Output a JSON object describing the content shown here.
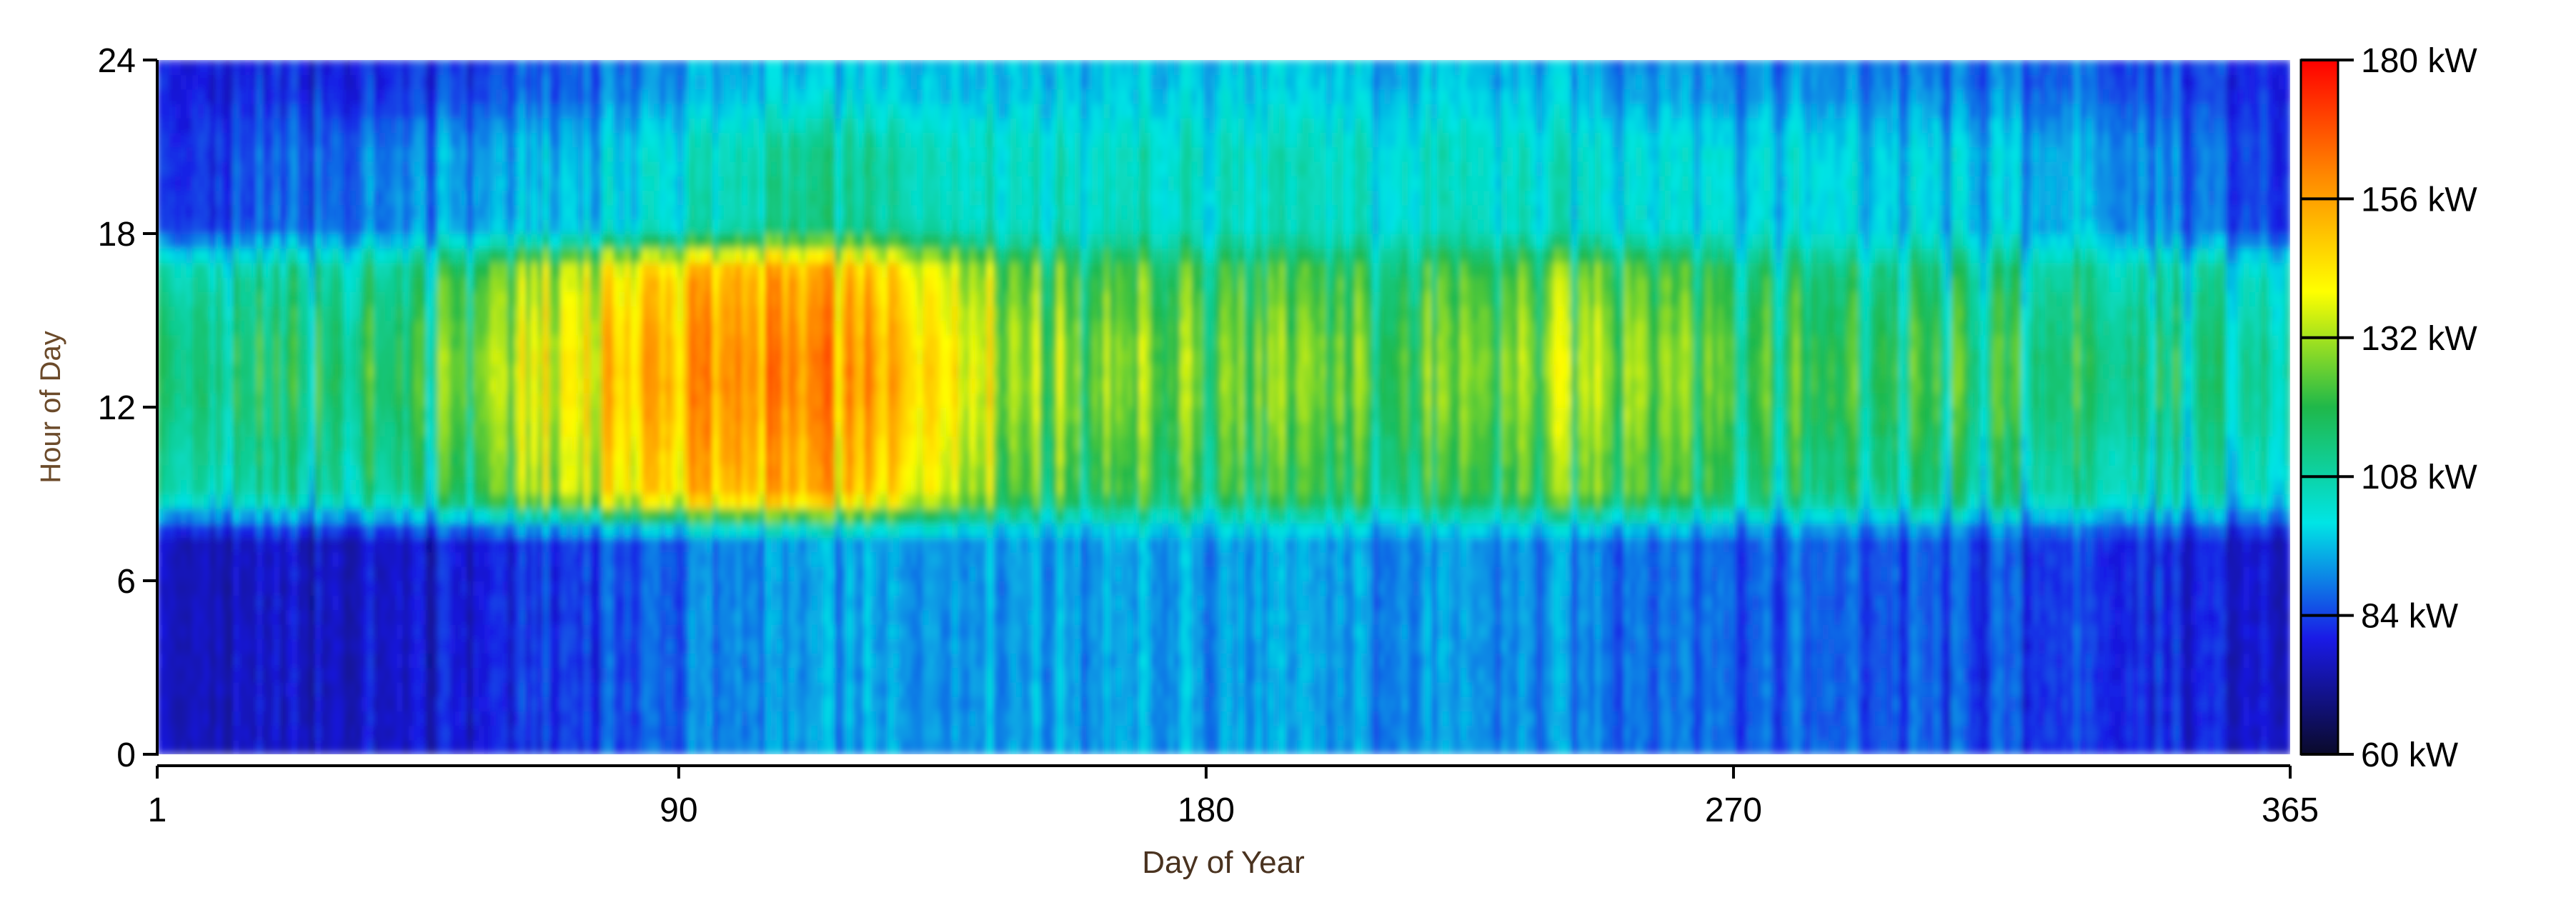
{
  "chart_data": {
    "type": "heatmap",
    "xlabel": "Day of Year",
    "ylabel": "Hour of Day",
    "x_range": [
      1,
      365
    ],
    "y_range": [
      0,
      24
    ],
    "x_ticks": [
      1,
      90,
      180,
      270,
      365
    ],
    "y_ticks": [
      0,
      6,
      12,
      18,
      24
    ],
    "colorbar": {
      "unit": "kW",
      "range": [
        60,
        180
      ],
      "ticks": [
        "60 kW",
        "84 kW",
        "108 kW",
        "132 kW",
        "156 kW",
        "180 kW"
      ],
      "colors": [
        "#0a0a2a",
        "#1a1ae6",
        "#00e5e5",
        "#1fb84a",
        "#ffff00",
        "#ff8800",
        "#ff0000"
      ],
      "placement": "right"
    },
    "profile": {
      "description_free": true,
      "night_kw_by_season": [
        {
          "day": 1,
          "kw": 76
        },
        {
          "day": 45,
          "kw": 78
        },
        {
          "day": 80,
          "kw": 86
        },
        {
          "day": 100,
          "kw": 92
        },
        {
          "day": 140,
          "kw": 95
        },
        {
          "day": 180,
          "kw": 94
        },
        {
          "day": 240,
          "kw": 92
        },
        {
          "day": 280,
          "kw": 88
        },
        {
          "day": 330,
          "kw": 84
        },
        {
          "day": 365,
          "kw": 78
        }
      ],
      "day_peak_kw_by_season": [
        {
          "day": 1,
          "kw": 115
        },
        {
          "day": 45,
          "kw": 120
        },
        {
          "day": 60,
          "kw": 135
        },
        {
          "day": 85,
          "kw": 155
        },
        {
          "day": 100,
          "kw": 162
        },
        {
          "day": 115,
          "kw": 160
        },
        {
          "day": 135,
          "kw": 150
        },
        {
          "day": 150,
          "kw": 132
        },
        {
          "day": 180,
          "kw": 128
        },
        {
          "day": 220,
          "kw": 126
        },
        {
          "day": 250,
          "kw": 136
        },
        {
          "day": 280,
          "kw": 122
        },
        {
          "day": 330,
          "kw": 118
        },
        {
          "day": 365,
          "kw": 112
        }
      ],
      "evening_kw_by_season": [
        {
          "day": 1,
          "kw": 82
        },
        {
          "day": 80,
          "kw": 100
        },
        {
          "day": 110,
          "kw": 112
        },
        {
          "day": 150,
          "kw": 106
        },
        {
          "day": 250,
          "kw": 104
        },
        {
          "day": 330,
          "kw": 96
        },
        {
          "day": 365,
          "kw": 84
        }
      ]
    }
  }
}
